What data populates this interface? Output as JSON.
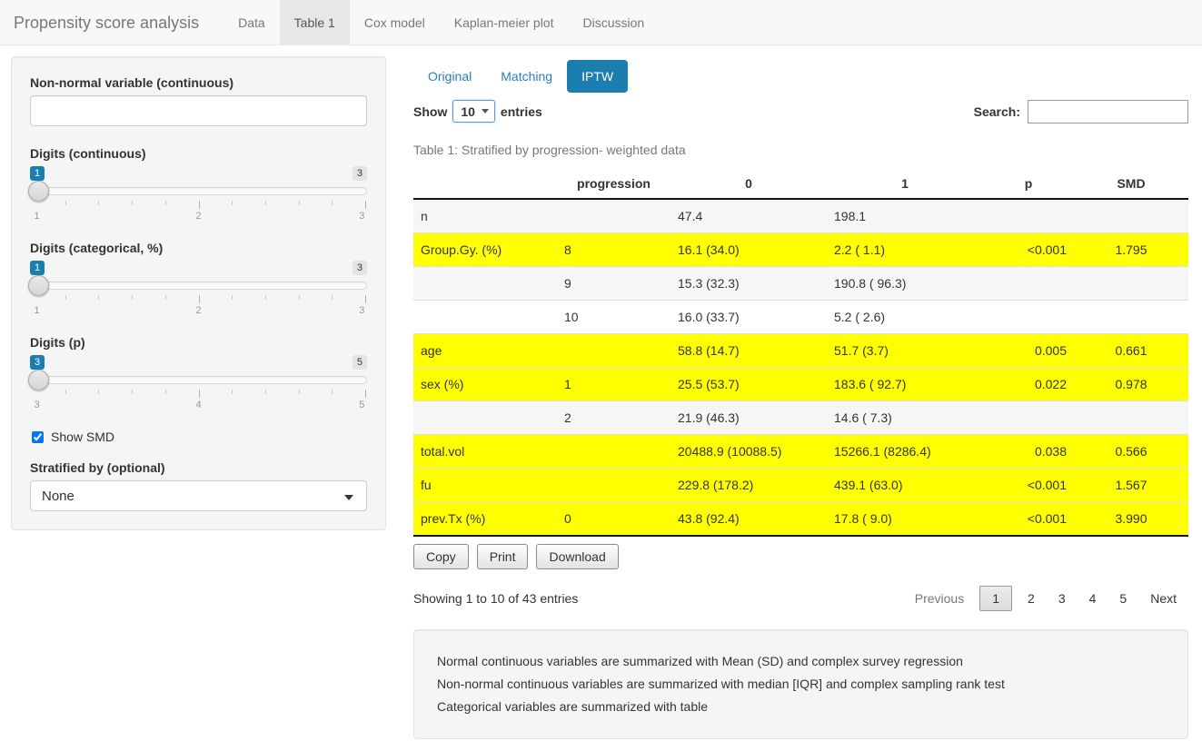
{
  "navbar": {
    "brand": "Propensity score analysis",
    "tabs": [
      {
        "label": "Data",
        "active": false
      },
      {
        "label": "Table 1",
        "active": true
      },
      {
        "label": "Cox model",
        "active": false
      },
      {
        "label": "Kaplan-meier plot",
        "active": false
      },
      {
        "label": "Discussion",
        "active": false
      }
    ]
  },
  "sidebar": {
    "nonnormal_label": "Non-normal variable (continuous)",
    "nonnormal_value": "",
    "sliders": [
      {
        "label": "Digits (continuous)",
        "value": "1",
        "max": "3",
        "ticks": [
          "1",
          "2",
          "3"
        ]
      },
      {
        "label": "Digits (categorical, %)",
        "value": "1",
        "max": "3",
        "ticks": [
          "1",
          "2",
          "3"
        ]
      },
      {
        "label": "Digits (p)",
        "value": "3",
        "max": "5",
        "ticks": [
          "3",
          "4",
          "5"
        ]
      }
    ],
    "smd_checkbox": {
      "label": "Show SMD",
      "checked": true
    },
    "stratified_label": "Stratified by (optional)",
    "stratified_value": "None"
  },
  "main": {
    "pills": [
      {
        "label": "Original",
        "active": false
      },
      {
        "label": "Matching",
        "active": false
      },
      {
        "label": "IPTW",
        "active": true
      }
    ],
    "length_control": {
      "prefix": "Show",
      "value": "10",
      "suffix": "entries"
    },
    "search": {
      "label": "Search:",
      "value": ""
    },
    "caption": "Table 1: Stratified by progression- weighted data",
    "table": {
      "headers": [
        "",
        "progression",
        "0",
        "1",
        "p",
        "SMD"
      ],
      "rows": [
        {
          "cells": [
            "n",
            "",
            "47.4",
            "198.1",
            "",
            ""
          ],
          "highlight": false,
          "stripe": true
        },
        {
          "cells": [
            "Group.Gy. (%)",
            "8",
            "16.1 (34.0)",
            "2.2 ( 1.1)",
            "<0.001",
            "1.795"
          ],
          "highlight": true,
          "stripe": false
        },
        {
          "cells": [
            "",
            "9",
            "15.3 (32.3)",
            "190.8 ( 96.3)",
            "",
            ""
          ],
          "highlight": false,
          "stripe": true
        },
        {
          "cells": [
            "",
            "10",
            "16.0 (33.7)",
            "5.2 ( 2.6)",
            "",
            ""
          ],
          "highlight": false,
          "stripe": false
        },
        {
          "cells": [
            "age",
            "",
            "58.8 (14.7)",
            "51.7 (3.7)",
            "0.005",
            "0.661"
          ],
          "highlight": true,
          "stripe": false
        },
        {
          "cells": [
            "sex (%)",
            "1",
            "25.5 (53.7)",
            "183.6 ( 92.7)",
            "0.022",
            "0.978"
          ],
          "highlight": true,
          "stripe": false
        },
        {
          "cells": [
            "",
            "2",
            "21.9 (46.3)",
            "14.6 ( 7.3)",
            "",
            ""
          ],
          "highlight": false,
          "stripe": true
        },
        {
          "cells": [
            "total.vol",
            "",
            "20488.9 (10088.5)",
            "15266.1 (8286.4)",
            "0.038",
            "0.566"
          ],
          "highlight": true,
          "stripe": false
        },
        {
          "cells": [
            "fu",
            "",
            "229.8 (178.2)",
            "439.1 (63.0)",
            "<0.001",
            "1.567"
          ],
          "highlight": true,
          "stripe": false
        },
        {
          "cells": [
            "prev.Tx (%)",
            "0",
            "43.8 (92.4)",
            "17.8 ( 9.0)",
            "<0.001",
            "3.990"
          ],
          "highlight": true,
          "stripe": false
        }
      ]
    },
    "buttons": [
      "Copy",
      "Print",
      "Download"
    ],
    "info": "Showing 1 to 10 of 43 entries",
    "pagination": {
      "previous": "Previous",
      "pages": [
        "1",
        "2",
        "3",
        "4",
        "5"
      ],
      "active_page": "1",
      "next": "Next"
    },
    "notes": [
      "Normal continuous variables are summarized with Mean (SD) and complex survey regression",
      "Non-normal continuous variables are summarized with median [IQR] and complex sampling rank test",
      "Categorical variables are summarized with table"
    ]
  },
  "colors": {
    "accent": "#1b7eae",
    "link": "#2980b9",
    "row_highlight": "#ffff00",
    "row_stripe": "#f6f6f6",
    "navbar_bg": "#f8f8f8",
    "panel_bg": "#f5f5f5"
  }
}
